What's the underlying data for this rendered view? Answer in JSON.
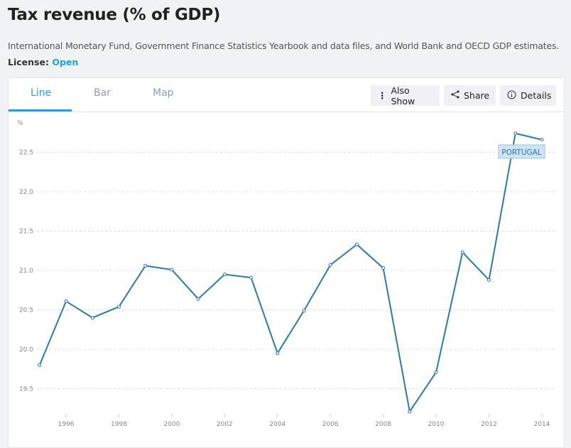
{
  "title": "Tax revenue (% of GDP)",
  "source": "International Monetary Fund, Government Finance Statistics Yearbook and data files, and World Bank and OECD GDP estimates.",
  "license": {
    "label": "License:",
    "value": "Open"
  },
  "tabs": [
    {
      "label": "Line"
    },
    {
      "label": "Bar"
    },
    {
      "label": "Map"
    }
  ],
  "buttons": {
    "also_show": "Also Show",
    "share": "Share",
    "details": "Details"
  },
  "icons": {
    "also_show": "vertical-dots-icon",
    "share": "share-icon",
    "details": "info-icon"
  },
  "colors": {
    "accent": "#1fa0e6",
    "series": "#2a78b5"
  },
  "chart_data": {
    "type": "line",
    "ylabel": "%",
    "ylim": [
      19.15,
      22.85
    ],
    "yticks": [
      "19.5",
      "20.0",
      "20.5",
      "21.0",
      "21.5",
      "22.0",
      "22.5"
    ],
    "xticks": [
      "1996",
      "1998",
      "2000",
      "2002",
      "2004",
      "2006",
      "2008",
      "2010",
      "2012",
      "2014"
    ],
    "grid": true,
    "series": [
      {
        "name": "PORTUGAL",
        "x": [
          1995,
          1996,
          1997,
          1998,
          1999,
          2000,
          2001,
          2002,
          2003,
          2004,
          2005,
          2006,
          2007,
          2008,
          2009,
          2010,
          2011,
          2012,
          2013,
          2014
        ],
        "values": [
          19.8,
          20.61,
          20.4,
          20.54,
          21.06,
          21.01,
          20.64,
          20.95,
          20.91,
          19.95,
          20.49,
          21.07,
          21.33,
          21.03,
          19.21,
          19.71,
          21.23,
          20.88,
          22.74,
          22.66
        ]
      }
    ]
  }
}
